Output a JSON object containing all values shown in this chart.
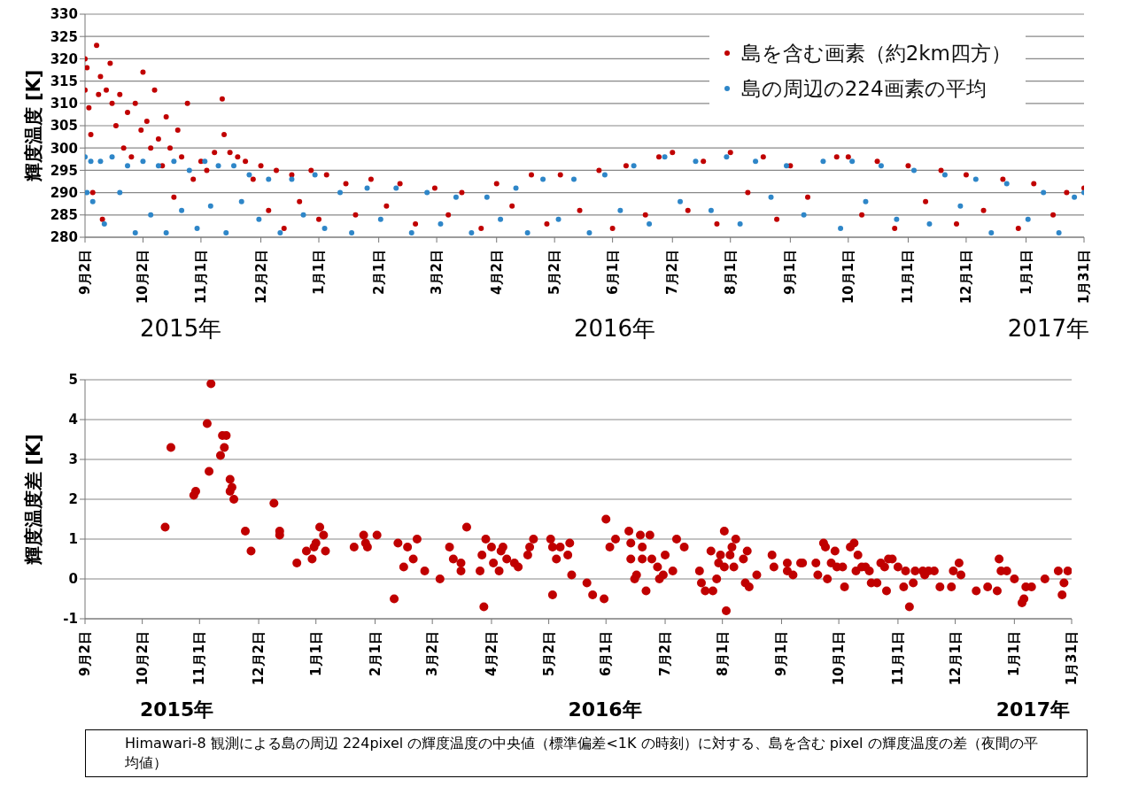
{
  "chart_data": [
    {
      "type": "scatter",
      "ylabel": "輝度温度 [K]",
      "xlim": [
        "2015-09-02",
        "2017-01-31"
      ],
      "xticks": [
        {
          "value": "2015-09-02",
          "label": "9月2日"
        },
        {
          "value": "2015-10-02",
          "label": "10月2日"
        },
        {
          "value": "2015-11-01",
          "label": "11月1日"
        },
        {
          "value": "2015-12-02",
          "label": "12月2日"
        },
        {
          "value": "2016-01-01",
          "label": "1月1日"
        },
        {
          "value": "2016-02-01",
          "label": "2月1日"
        },
        {
          "value": "2016-03-02",
          "label": "3月2日"
        },
        {
          "value": "2016-04-02",
          "label": "4月2日"
        },
        {
          "value": "2016-05-02",
          "label": "5月2日"
        },
        {
          "value": "2016-06-01",
          "label": "6月1日"
        },
        {
          "value": "2016-07-02",
          "label": "7月2日"
        },
        {
          "value": "2016-08-01",
          "label": "8月1日"
        },
        {
          "value": "2016-09-01",
          "label": "9月1日"
        },
        {
          "value": "2016-10-01",
          "label": "10月1日"
        },
        {
          "value": "2016-11-01",
          "label": "11月1日"
        },
        {
          "value": "2016-12-01",
          "label": "12月1日"
        },
        {
          "value": "2017-01-01",
          "label": "1月1日"
        },
        {
          "value": "2017-01-31",
          "label": "1月31日"
        }
      ],
      "ylim": [
        280,
        330
      ],
      "yticks": [
        280,
        285,
        290,
        295,
        300,
        305,
        310,
        315,
        320,
        325,
        330
      ],
      "grid": "y",
      "legend": "top right",
      "marker": "circle",
      "annotations": [
        "2015年",
        "2016年",
        "2017年"
      ],
      "series": [
        {
          "name": "島を含む画素（約2km四方）",
          "color": "#c00000",
          "x": [
            "2015-09-02",
            "2015-09-02",
            "2015-09-03",
            "2015-09-04",
            "2015-09-05",
            "2015-09-06",
            "2015-09-08",
            "2015-09-09",
            "2015-09-10",
            "2015-09-11",
            "2015-09-13",
            "2015-09-15",
            "2015-09-16",
            "2015-09-18",
            "2015-09-20",
            "2015-09-22",
            "2015-09-24",
            "2015-09-26",
            "2015-09-28",
            "2015-10-01",
            "2015-10-02",
            "2015-10-04",
            "2015-10-06",
            "2015-10-08",
            "2015-10-10",
            "2015-10-12",
            "2015-10-14",
            "2015-10-16",
            "2015-10-18",
            "2015-10-20",
            "2015-10-22",
            "2015-10-25",
            "2015-10-28",
            "2015-11-01",
            "2015-11-04",
            "2015-11-08",
            "2015-11-12",
            "2015-11-13",
            "2015-11-16",
            "2015-11-20",
            "2015-11-24",
            "2015-11-28",
            "2015-12-02",
            "2015-12-06",
            "2015-12-10",
            "2015-12-14",
            "2015-12-18",
            "2015-12-22",
            "2015-12-28",
            "2016-01-01",
            "2016-01-05",
            "2016-01-15",
            "2016-01-20",
            "2016-01-28",
            "2016-02-05",
            "2016-02-12",
            "2016-02-20",
            "2016-03-01",
            "2016-03-08",
            "2016-03-15",
            "2016-03-25",
            "2016-04-02",
            "2016-04-10",
            "2016-04-20",
            "2016-04-28",
            "2016-05-05",
            "2016-05-15",
            "2016-05-25",
            "2016-06-01",
            "2016-06-08",
            "2016-06-18",
            "2016-06-25",
            "2016-07-02",
            "2016-07-10",
            "2016-07-18",
            "2016-07-25",
            "2016-08-01",
            "2016-08-10",
            "2016-08-18",
            "2016-08-25",
            "2016-09-01",
            "2016-09-10",
            "2016-09-25",
            "2016-10-01",
            "2016-10-08",
            "2016-10-16",
            "2016-10-25",
            "2016-11-01",
            "2016-11-10",
            "2016-11-18",
            "2016-11-26",
            "2016-12-01",
            "2016-12-10",
            "2016-12-20",
            "2016-12-28",
            "2017-01-05",
            "2017-01-15",
            "2017-01-22",
            "2017-01-31"
          ],
          "values": [
            320,
            313,
            318,
            309,
            303,
            290,
            323,
            312,
            316,
            284,
            313,
            319,
            310,
            305,
            312,
            300,
            308,
            298,
            310,
            304,
            317,
            306,
            300,
            313,
            302,
            296,
            307,
            300,
            289,
            304,
            298,
            310,
            293,
            297,
            295,
            299,
            311,
            303,
            299,
            298,
            297,
            293,
            296,
            286,
            295,
            282,
            294,
            288,
            295,
            284,
            294,
            292,
            285,
            293,
            287,
            292,
            283,
            291,
            285,
            290,
            282,
            292,
            287,
            294,
            283,
            294,
            286,
            295,
            282,
            296,
            285,
            298,
            299,
            286,
            297,
            283,
            299,
            290,
            298,
            284,
            296,
            289,
            298,
            298,
            285,
            297,
            282,
            296,
            288,
            295,
            283,
            294,
            286,
            293,
            282,
            292,
            285,
            290,
            291
          ]
        },
        {
          "name": "島の周辺の224画素の平均",
          "color": "#2e86c8",
          "x": [
            "2015-09-02",
            "2015-09-03",
            "2015-09-05",
            "2015-09-06",
            "2015-09-10",
            "2015-09-12",
            "2015-09-16",
            "2015-09-20",
            "2015-09-24",
            "2015-09-28",
            "2015-10-02",
            "2015-10-06",
            "2015-10-10",
            "2015-10-14",
            "2015-10-18",
            "2015-10-22",
            "2015-10-26",
            "2015-10-30",
            "2015-11-03",
            "2015-11-06",
            "2015-11-10",
            "2015-11-14",
            "2015-11-18",
            "2015-11-22",
            "2015-11-26",
            "2015-12-01",
            "2015-12-06",
            "2015-12-12",
            "2015-12-18",
            "2015-12-24",
            "2015-12-30",
            "2016-01-04",
            "2016-01-12",
            "2016-01-18",
            "2016-01-26",
            "2016-02-02",
            "2016-02-10",
            "2016-02-18",
            "2016-02-26",
            "2016-03-04",
            "2016-03-12",
            "2016-03-20",
            "2016-03-28",
            "2016-04-04",
            "2016-04-12",
            "2016-04-18",
            "2016-04-26",
            "2016-05-04",
            "2016-05-12",
            "2016-05-20",
            "2016-05-28",
            "2016-06-05",
            "2016-06-12",
            "2016-06-20",
            "2016-06-28",
            "2016-07-06",
            "2016-07-14",
            "2016-07-22",
            "2016-07-30",
            "2016-08-06",
            "2016-08-14",
            "2016-08-22",
            "2016-08-30",
            "2016-09-08",
            "2016-09-18",
            "2016-09-27",
            "2016-10-03",
            "2016-10-10",
            "2016-10-18",
            "2016-10-26",
            "2016-11-04",
            "2016-11-12",
            "2016-11-20",
            "2016-11-28",
            "2016-12-06",
            "2016-12-14",
            "2016-12-22",
            "2017-01-02",
            "2017-01-10",
            "2017-01-18",
            "2017-01-26",
            "2017-01-31"
          ],
          "values": [
            298,
            290,
            297,
            288,
            297,
            283,
            298,
            290,
            296,
            281,
            297,
            285,
            296,
            281,
            297,
            286,
            295,
            282,
            297,
            287,
            296,
            281,
            296,
            288,
            294,
            284,
            293,
            281,
            293,
            285,
            294,
            282,
            290,
            281,
            291,
            284,
            291,
            281,
            290,
            283,
            289,
            281,
            289,
            284,
            291,
            281,
            293,
            284,
            293,
            281,
            294,
            286,
            296,
            283,
            298,
            288,
            297,
            286,
            298,
            283,
            297,
            289,
            296,
            285,
            297,
            282,
            297,
            288,
            296,
            284,
            295,
            283,
            294,
            287,
            293,
            281,
            292,
            284,
            290,
            281,
            289,
            290
          ]
        }
      ]
    },
    {
      "type": "scatter",
      "ylabel": "輝度温度差 [K]",
      "xlim": [
        "2015-09-02",
        "2017-01-31"
      ],
      "xticks": [
        {
          "value": "2015-09-02",
          "label": "9月2日"
        },
        {
          "value": "2015-10-02",
          "label": "10月2日"
        },
        {
          "value": "2015-11-01",
          "label": "11月1日"
        },
        {
          "value": "2015-12-02",
          "label": "12月2日"
        },
        {
          "value": "2016-01-01",
          "label": "1月1日"
        },
        {
          "value": "2016-02-01",
          "label": "2月1日"
        },
        {
          "value": "2016-03-02",
          "label": "3月2日"
        },
        {
          "value": "2016-04-02",
          "label": "4月2日"
        },
        {
          "value": "2016-05-02",
          "label": "5月2日"
        },
        {
          "value": "2016-06-01",
          "label": "6月1日"
        },
        {
          "value": "2016-07-02",
          "label": "7月2日"
        },
        {
          "value": "2016-08-01",
          "label": "8月1日"
        },
        {
          "value": "2016-09-01",
          "label": "9月1日"
        },
        {
          "value": "2016-10-01",
          "label": "10月1日"
        },
        {
          "value": "2016-11-01",
          "label": "11月1日"
        },
        {
          "value": "2016-12-01",
          "label": "12月1日"
        },
        {
          "value": "2017-01-01",
          "label": "1月1日"
        },
        {
          "value": "2017-01-31",
          "label": "1月31日"
        }
      ],
      "ylim": [
        -1,
        5
      ],
      "yticks": [
        -1,
        0,
        1,
        2,
        3,
        4,
        5
      ],
      "grid": "y",
      "marker": "circle",
      "annotations": [
        "2015年",
        "2016年",
        "2017年",
        "Himawari-8 観測による島の周辺 224pixel の輝度温度の中央値（標準偏差<1K の時刻）に対する、島を含む pixel の輝度温度の差（夜間の平均値）"
      ],
      "series": [
        {
          "color": "#c00000",
          "x": [
            "2015-10-14",
            "2015-10-17",
            "2015-10-29",
            "2015-10-30",
            "2015-11-05",
            "2015-11-06",
            "2015-11-07",
            "2015-11-12",
            "2015-11-13",
            "2015-11-14",
            "2015-11-15",
            "2015-11-17",
            "2015-11-17",
            "2015-11-18",
            "2015-11-19",
            "2015-11-25",
            "2015-11-28",
            "2015-12-10",
            "2015-12-13",
            "2015-12-13",
            "2015-12-22",
            "2015-12-27",
            "2015-12-30",
            "2015-12-31",
            "2016-01-01",
            "2016-01-03",
            "2016-01-05",
            "2016-01-06",
            "2016-01-21",
            "2016-01-26",
            "2016-01-27",
            "2016-01-28",
            "2016-02-02",
            "2016-02-11",
            "2016-02-13",
            "2016-02-16",
            "2016-02-18",
            "2016-02-21",
            "2016-02-23",
            "2016-02-27",
            "2016-03-06",
            "2016-03-11",
            "2016-03-13",
            "2016-03-17",
            "2016-03-17",
            "2016-03-20",
            "2016-03-27",
            "2016-03-28",
            "2016-03-29",
            "2016-03-30",
            "2016-04-02",
            "2016-04-03",
            "2016-04-06",
            "2016-04-07",
            "2016-04-08",
            "2016-04-10",
            "2016-04-14",
            "2016-04-16",
            "2016-04-21",
            "2016-04-22",
            "2016-04-24",
            "2016-05-03",
            "2016-05-04",
            "2016-05-04",
            "2016-05-06",
            "2016-05-08",
            "2016-05-12",
            "2016-05-13",
            "2016-05-14",
            "2016-05-22",
            "2016-05-25",
            "2016-05-31",
            "2016-06-01",
            "2016-06-03",
            "2016-06-06",
            "2016-06-13",
            "2016-06-14",
            "2016-06-14",
            "2016-06-16",
            "2016-06-17",
            "2016-06-19",
            "2016-06-20",
            "2016-06-20",
            "2016-06-22",
            "2016-06-24",
            "2016-06-25",
            "2016-06-28",
            "2016-06-29",
            "2016-07-01",
            "2016-07-02",
            "2016-07-06",
            "2016-07-08",
            "2016-07-12",
            "2016-07-20",
            "2016-07-21",
            "2016-07-23",
            "2016-07-26",
            "2016-07-27",
            "2016-07-29",
            "2016-07-30",
            "2016-07-31",
            "2016-08-02",
            "2016-08-02",
            "2016-08-03",
            "2016-08-05",
            "2016-08-06",
            "2016-08-07",
            "2016-08-08",
            "2016-08-12",
            "2016-08-13",
            "2016-08-14",
            "2016-08-15",
            "2016-08-19",
            "2016-08-27",
            "2016-08-28",
            "2016-09-04",
            "2016-09-04",
            "2016-09-07",
            "2016-09-11",
            "2016-09-12",
            "2016-09-19",
            "2016-09-20",
            "2016-09-23",
            "2016-09-24",
            "2016-09-25",
            "2016-09-27",
            "2016-09-29",
            "2016-09-30",
            "2016-10-03",
            "2016-10-04",
            "2016-10-07",
            "2016-10-09",
            "2016-10-10",
            "2016-10-11",
            "2016-10-13",
            "2016-10-15",
            "2016-10-17",
            "2016-10-18",
            "2016-10-21",
            "2016-10-23",
            "2016-10-25",
            "2016-10-26",
            "2016-10-27",
            "2016-10-29",
            "2016-11-01",
            "2016-11-04",
            "2016-11-05",
            "2016-11-07",
            "2016-11-09",
            "2016-11-10",
            "2016-11-14",
            "2016-11-15",
            "2016-11-17",
            "2016-11-20",
            "2016-11-23",
            "2016-11-29",
            "2016-11-30",
            "2016-12-03",
            "2016-12-04",
            "2016-12-12",
            "2016-12-18",
            "2016-12-23",
            "2016-12-24",
            "2016-12-25",
            "2016-12-28",
            "2017-01-01",
            "2017-01-05",
            "2017-01-06",
            "2017-01-07",
            "2017-01-10",
            "2017-01-17",
            "2017-01-24",
            "2017-01-26",
            "2017-01-27",
            "2017-01-29"
          ],
          "values": [
            1.3,
            3.3,
            2.1,
            2.2,
            3.9,
            2.7,
            4.9,
            3.1,
            3.6,
            3.3,
            3.6,
            2.5,
            2.2,
            2.3,
            2.0,
            1.2,
            0.7,
            1.9,
            1.2,
            1.1,
            0.4,
            0.7,
            0.5,
            0.8,
            0.9,
            1.3,
            1.1,
            0.7,
            0.8,
            1.1,
            0.9,
            0.8,
            1.1,
            -0.5,
            0.9,
            0.3,
            0.8,
            0.5,
            1.0,
            0.2,
            0.0,
            0.8,
            0.5,
            0.4,
            0.2,
            1.3,
            0.2,
            0.6,
            -0.7,
            1.0,
            0.8,
            0.4,
            0.2,
            0.7,
            0.8,
            0.5,
            0.4,
            0.3,
            0.6,
            0.8,
            1.0,
            1.0,
            -0.4,
            0.8,
            0.5,
            0.8,
            0.6,
            0.9,
            0.1,
            -0.1,
            -0.4,
            -0.5,
            1.5,
            0.8,
            1.0,
            1.2,
            0.9,
            0.5,
            0.0,
            0.1,
            1.1,
            0.8,
            0.5,
            -0.3,
            1.1,
            0.5,
            0.3,
            0.0,
            0.1,
            0.6,
            0.2,
            1.0,
            0.8,
            0.2,
            -0.1,
            -0.3,
            0.7,
            -0.3,
            0.0,
            0.4,
            0.6,
            1.2,
            0.3,
            -0.8,
            0.6,
            0.8,
            0.3,
            1.0,
            0.5,
            -0.1,
            0.7,
            -0.2,
            0.1,
            0.6,
            0.3,
            0.4,
            0.2,
            0.1,
            0.4,
            0.4,
            0.4,
            0.1,
            0.9,
            0.8,
            0.0,
            0.4,
            0.7,
            0.3,
            0.3,
            -0.2,
            0.8,
            0.9,
            0.2,
            0.6,
            0.3,
            0.3,
            0.2,
            -0.1,
            -0.1,
            0.4,
            0.3,
            -0.3,
            0.5,
            0.5,
            0.3,
            -0.2,
            0.2,
            -0.7,
            -0.1,
            0.2,
            0.2,
            0.1,
            0.2,
            0.2,
            -0.2,
            -0.2,
            0.2,
            0.4,
            0.1,
            -0.3,
            -0.2,
            -0.3,
            0.5,
            0.2,
            0.2,
            0.0,
            -0.6,
            -0.5,
            -0.2,
            -0.2,
            0.0,
            0.2,
            -0.4,
            -0.1,
            0.2
          ]
        }
      ]
    }
  ]
}
